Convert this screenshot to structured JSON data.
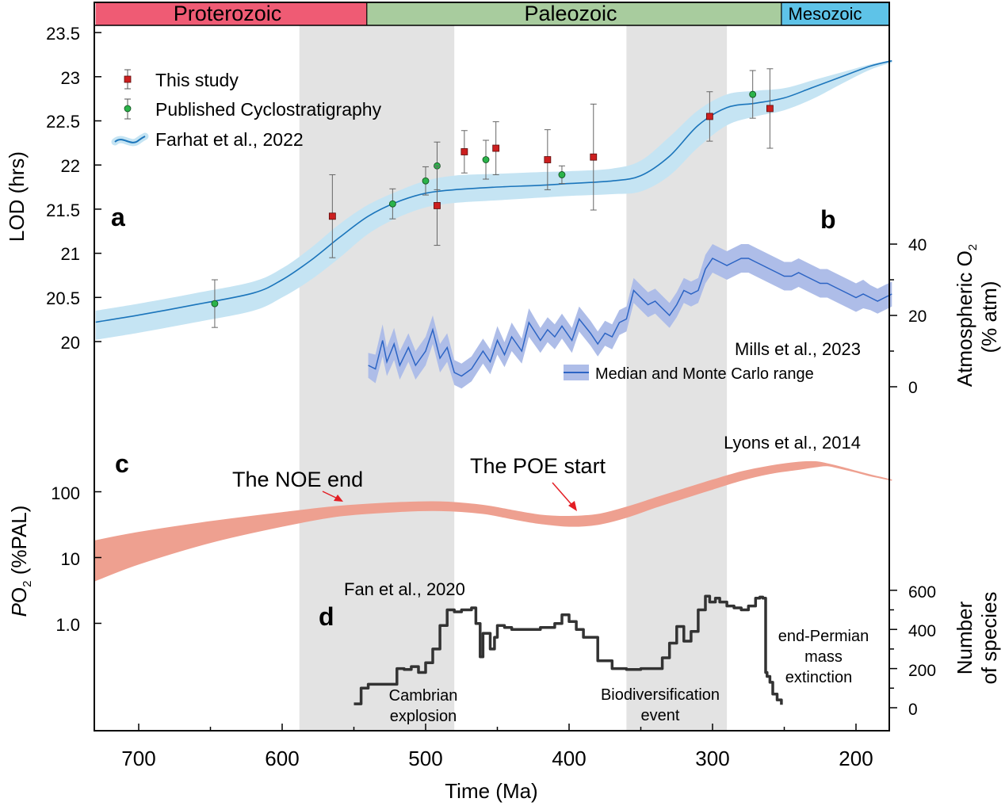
{
  "eras": [
    {
      "name": "Proterozoic",
      "from": 730,
      "to": 541,
      "color": "#ef5b74"
    },
    {
      "name": "Paleozoic",
      "from": 541,
      "to": 252,
      "color": "#a8cc9e"
    },
    {
      "name": "Mesozoic",
      "from": 252,
      "to": 175,
      "color": "#5ec3e8"
    }
  ],
  "shading": [
    {
      "from": 588,
      "to": 480,
      "color": "#e3e3e3"
    },
    {
      "from": 360,
      "to": 290,
      "color": "#e3e3e3"
    }
  ],
  "colors": {
    "lod_band": "#c5e4f3",
    "lod_line": "#1b75bb",
    "o2_band": "#aebde8",
    "o2_line": "#2c64c4",
    "po2_band": "#eea090",
    "species_line": "#333333",
    "this_study": "#cc1f1f",
    "cyclo": "#2bb34a",
    "arrow": "#e31e24"
  },
  "axes": {
    "xlabel": "Time (Ma)",
    "xticks": [
      "700",
      "600",
      "500",
      "400",
      "300",
      "200"
    ],
    "xlim": [
      730,
      175
    ],
    "lod_label": "LOD (hrs)",
    "lod_ticks": [
      "20",
      "20.5",
      "21",
      "21.5",
      "22",
      "22.5",
      "23",
      "23.5"
    ],
    "o2_label_line1": "Atmospheric O",
    "o2_label_sub": "2",
    "o2_label_line2": "(% atm)",
    "o2_ticks": [
      "0",
      "20",
      "40"
    ],
    "po2_label_italic": "P",
    "po2_label_o": "O",
    "po2_label_sub": "2",
    "po2_label_rest": " (%PAL)",
    "po2_ticks": [
      "1.0",
      "10",
      "100"
    ],
    "species_label_line1": "Number",
    "species_label_line2": "of species",
    "species_ticks": [
      "0",
      "200",
      "400",
      "600"
    ]
  },
  "panel_letters": {
    "a": "a",
    "b": "b",
    "c": "c",
    "d": "d"
  },
  "legend": {
    "this_study": "This study",
    "cyclo": "Published Cyclostratigraphy",
    "farhat": "Farhat et al., 2022"
  },
  "annotations": {
    "mills": "Mills et al., 2023",
    "mills_legend": "Median and Monte Carlo range",
    "lyons": "Lyons et al., 2014",
    "noe": "The NOE end",
    "poe": "The POE start",
    "fan": "Fan et al., 2020",
    "cambrian_1": "Cambrian",
    "cambrian_2": "explosion",
    "biodiv_1": "Biodiversification",
    "biodiv_2": "event",
    "permian_1": "end-Permian",
    "permian_2": "mass",
    "permian_3": "extinction"
  },
  "chart_data": [
    {
      "type": "line",
      "panel": "a",
      "xlabel": "Time (Ma)",
      "ylabel": "LOD (hrs)",
      "ylim": [
        20,
        23.5
      ],
      "series": [
        {
          "name": "Farhat et al., 2022",
          "x": [
            730,
            700,
            660,
            620,
            600,
            580,
            560,
            540,
            520,
            500,
            480,
            450,
            420,
            400,
            370,
            350,
            330,
            310,
            290,
            270,
            250,
            230,
            210,
            190,
            175
          ],
          "values": [
            20.22,
            20.3,
            20.42,
            20.55,
            20.7,
            20.92,
            21.18,
            21.42,
            21.58,
            21.68,
            21.72,
            21.75,
            21.77,
            21.79,
            21.82,
            21.88,
            22.1,
            22.45,
            22.65,
            22.7,
            22.76,
            22.88,
            23.0,
            23.12,
            23.18
          ],
          "upper": [
            20.35,
            20.43,
            20.55,
            20.68,
            20.83,
            21.06,
            21.33,
            21.55,
            21.7,
            21.82,
            21.88,
            21.9,
            21.92,
            21.93,
            21.96,
            22.05,
            22.32,
            22.62,
            22.8,
            22.84,
            22.87,
            22.96,
            23.05,
            23.14,
            23.19
          ],
          "lower": [
            20.02,
            20.1,
            20.22,
            20.35,
            20.5,
            20.7,
            20.95,
            21.22,
            21.4,
            21.52,
            21.57,
            21.6,
            21.63,
            21.65,
            21.67,
            21.7,
            21.88,
            22.2,
            22.45,
            22.55,
            22.62,
            22.75,
            22.92,
            23.08,
            23.16
          ]
        },
        {
          "name": "This study",
          "x": [
            565,
            492,
            473,
            451,
            415,
            383,
            302,
            260
          ],
          "values": [
            21.42,
            21.54,
            22.15,
            22.19,
            22.06,
            22.09,
            22.55,
            22.64
          ],
          "err": [
            0.47,
            0.45,
            0.24,
            0.3,
            0.34,
            0.6,
            0.28,
            0.45
          ]
        },
        {
          "name": "Published Cyclostratigraphy",
          "x": [
            647,
            523,
            500,
            492,
            458,
            405,
            272
          ],
          "values": [
            20.43,
            21.56,
            21.82,
            21.99,
            22.06,
            21.89,
            22.8
          ],
          "err": [
            0.27,
            0.17,
            0.16,
            0.27,
            0.22,
            0.1,
            0.27
          ]
        }
      ]
    },
    {
      "type": "area",
      "panel": "b",
      "ylabel": "Atmospheric O2 (% atm)",
      "ylim": [
        0,
        40
      ],
      "series": [
        {
          "name": "Median and Monte Carlo range",
          "x": [
            540,
            535,
            530,
            527,
            522,
            518,
            512,
            507,
            500,
            495,
            490,
            485,
            480,
            475,
            468,
            460,
            455,
            450,
            445,
            440,
            433,
            428,
            420,
            415,
            410,
            405,
            398,
            393,
            385,
            380,
            375,
            370,
            365,
            360,
            355,
            350,
            345,
            340,
            335,
            330,
            325,
            320,
            315,
            310,
            305,
            300,
            295,
            290,
            285,
            280,
            275,
            270,
            265,
            260,
            255,
            250,
            245,
            240,
            235,
            230,
            225,
            220,
            215,
            210,
            205,
            200,
            195,
            190,
            185,
            180,
            175
          ],
          "values": [
            6,
            5,
            13,
            7,
            12,
            6,
            11,
            6,
            10,
            16,
            8,
            11,
            4,
            3,
            5,
            10,
            7,
            13,
            9,
            14,
            10,
            18,
            13,
            16,
            14,
            17,
            13,
            19,
            15,
            12,
            15,
            14,
            18,
            19,
            27,
            25,
            23,
            24,
            22,
            20,
            23,
            27,
            26,
            27,
            33,
            36,
            35,
            34,
            35,
            36,
            36,
            35,
            34,
            33,
            32,
            31,
            31,
            32,
            31,
            30,
            29,
            29,
            28,
            27,
            26,
            25,
            26,
            25,
            24,
            25,
            26
          ],
          "spread": [
            3.5,
            4,
            4.5,
            4,
            4.5,
            4,
            4,
            4,
            4,
            4,
            4,
            4,
            3.5,
            3.5,
            3.5,
            3.5,
            3.5,
            4,
            3.5,
            4,
            3.5,
            4,
            3.5,
            3.5,
            3.5,
            3.5,
            3.5,
            3.5,
            3.5,
            3.5,
            3.5,
            3.5,
            3.5,
            3.5,
            3.5,
            3.5,
            3.5,
            3.5,
            3.5,
            3.5,
            3.5,
            3.5,
            3.5,
            3.5,
            4,
            4,
            4,
            4,
            4,
            4,
            4,
            4,
            4,
            4,
            4,
            4,
            4,
            4,
            4,
            4,
            4,
            4,
            4,
            4,
            4,
            4,
            4,
            3.5,
            3.5,
            3.5,
            3.5
          ]
        }
      ]
    },
    {
      "type": "area",
      "panel": "c",
      "ylabel": "PO2 (%PAL)",
      "scale": "log",
      "ylim": [
        0.05,
        1000
      ],
      "series": [
        {
          "name": "Lyons et al., 2014",
          "x": [
            730,
            700,
            650,
            600,
            560,
            520,
            490,
            460,
            440,
            420,
            400,
            380,
            360,
            340,
            320,
            300,
            280,
            260,
            240,
            228,
            220,
            210,
            200,
            190,
            180,
            175
          ],
          "upper": [
            18,
            24,
            35,
            48,
            60,
            68,
            70,
            62,
            52,
            44,
            42,
            45,
            58,
            80,
            110,
            150,
            200,
            245,
            280,
            285,
            265,
            235,
            205,
            180,
            160,
            150
          ],
          "lower": [
            4.5,
            8,
            17,
            30,
            43,
            50,
            52,
            47,
            39,
            33,
            30,
            32,
            41,
            58,
            80,
            110,
            150,
            190,
            220,
            240,
            250,
            225,
            200,
            175,
            158,
            150
          ]
        }
      ]
    },
    {
      "type": "line",
      "panel": "d",
      "ylabel": "Number of species",
      "ylim": [
        0,
        600
      ],
      "series": [
        {
          "name": "Fan et al., 2020",
          "x": [
            550,
            545,
            540,
            530,
            520,
            515,
            510,
            505,
            500,
            495,
            490,
            485,
            480,
            475,
            470,
            468,
            465,
            462,
            460,
            455,
            452,
            450,
            445,
            440,
            430,
            420,
            410,
            405,
            400,
            395,
            390,
            380,
            370,
            360,
            350,
            340,
            335,
            330,
            325,
            320,
            315,
            310,
            305,
            302,
            298,
            295,
            290,
            285,
            280,
            275,
            270,
            267,
            265,
            263,
            262,
            260,
            258,
            255,
            252
          ],
          "values": [
            20,
            100,
            120,
            120,
            200,
            195,
            210,
            180,
            230,
            300,
            420,
            500,
            490,
            500,
            500,
            510,
            430,
            260,
            380,
            300,
            360,
            420,
            410,
            400,
            400,
            410,
            430,
            475,
            440,
            400,
            360,
            240,
            200,
            195,
            200,
            200,
            255,
            330,
            415,
            340,
            390,
            500,
            570,
            540,
            560,
            540,
            520,
            510,
            500,
            520,
            560,
            565,
            560,
            180,
            160,
            130,
            70,
            40,
            15
          ]
        }
      ]
    }
  ]
}
